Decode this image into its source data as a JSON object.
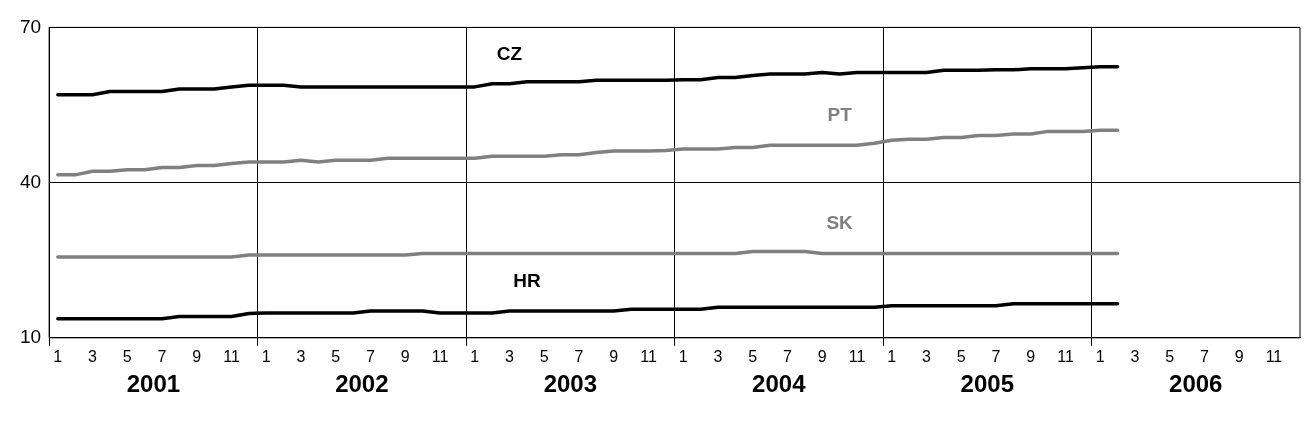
{
  "chart_data": {
    "type": "line",
    "categories": [
      "1",
      null,
      "3",
      null,
      "5",
      null,
      "7",
      null,
      "9",
      null,
      "11",
      null,
      "1",
      null,
      "3",
      null,
      "5",
      null,
      "7",
      null,
      "9",
      null,
      "11",
      null,
      "1",
      null,
      "3",
      null,
      "5",
      null,
      "7",
      null,
      "9",
      null,
      "11",
      null,
      "1",
      null,
      "3",
      null,
      "5",
      null,
      "7",
      null,
      "9",
      null,
      "11",
      null,
      "1",
      null,
      "3",
      null,
      "5",
      null,
      "7",
      null,
      "9",
      null,
      "11",
      null,
      "1",
      null,
      "3",
      null,
      "5",
      null,
      "7",
      null,
      "9",
      null,
      "11",
      null
    ],
    "series": [
      {
        "name": "CZ",
        "color": "#000000",
        "values": [
          57.0,
          57.0,
          57.0,
          57.6,
          57.6,
          57.6,
          57.6,
          58.1,
          58.1,
          58.1,
          58.5,
          58.8,
          58.8,
          58.8,
          58.5,
          58.5,
          58.5,
          58.5,
          58.5,
          58.5,
          58.5,
          58.5,
          58.5,
          58.5,
          58.5,
          59.1,
          59.1,
          59.5,
          59.5,
          59.5,
          59.5,
          59.8,
          59.8,
          59.8,
          59.8,
          59.8,
          59.9,
          59.9,
          60.3,
          60.3,
          60.7,
          61.0,
          61.0,
          61.0,
          61.3,
          61.0,
          61.3,
          61.3,
          61.3,
          61.3,
          61.3,
          61.7,
          61.7,
          61.7,
          61.8,
          61.8,
          62.0,
          62.0,
          62.0,
          62.2,
          62.4,
          62.4,
          null,
          null,
          null,
          null,
          null,
          null,
          null,
          null,
          null,
          null
        ]
      },
      {
        "name": "PT",
        "color": "#808080",
        "values": [
          41.5,
          41.5,
          42.2,
          42.2,
          42.5,
          42.5,
          42.9,
          42.9,
          43.3,
          43.3,
          43.7,
          44.0,
          44.0,
          44.0,
          44.3,
          44.0,
          44.3,
          44.3,
          44.3,
          44.7,
          44.7,
          44.7,
          44.7,
          44.7,
          44.7,
          45.1,
          45.1,
          45.1,
          45.1,
          45.4,
          45.4,
          45.8,
          46.1,
          46.1,
          46.1,
          46.2,
          46.5,
          46.5,
          46.5,
          46.8,
          46.8,
          47.2,
          47.2,
          47.2,
          47.2,
          47.2,
          47.2,
          47.6,
          48.2,
          48.4,
          48.4,
          48.7,
          48.7,
          49.1,
          49.1,
          49.4,
          49.4,
          49.9,
          49.9,
          49.9,
          50.1,
          50.1,
          null,
          null,
          null,
          null,
          null,
          null,
          null,
          null,
          null,
          null
        ]
      },
      {
        "name": "SK",
        "color": "#808080",
        "values": [
          25.6,
          25.6,
          25.6,
          25.6,
          25.6,
          25.6,
          25.6,
          25.6,
          25.6,
          25.6,
          25.6,
          26.0,
          26.0,
          26.0,
          26.0,
          26.0,
          26.0,
          26.0,
          26.0,
          26.0,
          26.0,
          26.3,
          26.3,
          26.3,
          26.3,
          26.3,
          26.3,
          26.3,
          26.3,
          26.3,
          26.3,
          26.3,
          26.3,
          26.3,
          26.3,
          26.3,
          26.3,
          26.3,
          26.3,
          26.3,
          26.7,
          26.7,
          26.7,
          26.7,
          26.3,
          26.3,
          26.3,
          26.3,
          26.3,
          26.3,
          26.3,
          26.3,
          26.3,
          26.3,
          26.3,
          26.3,
          26.3,
          26.3,
          26.3,
          26.3,
          26.3,
          26.3,
          null,
          null,
          null,
          null,
          null,
          null,
          null,
          null,
          null,
          null
        ]
      },
      {
        "name": "HR",
        "color": "#000000",
        "values": [
          13.7,
          13.7,
          13.7,
          13.7,
          13.7,
          13.7,
          13.7,
          14.1,
          14.1,
          14.1,
          14.1,
          14.7,
          14.8,
          14.8,
          14.8,
          14.8,
          14.8,
          14.8,
          15.2,
          15.2,
          15.2,
          15.2,
          14.8,
          14.8,
          14.8,
          14.8,
          15.2,
          15.2,
          15.2,
          15.2,
          15.2,
          15.2,
          15.2,
          15.5,
          15.5,
          15.5,
          15.5,
          15.5,
          15.9,
          15.9,
          15.9,
          15.9,
          15.9,
          15.9,
          15.9,
          15.9,
          15.9,
          15.9,
          16.2,
          16.2,
          16.2,
          16.2,
          16.2,
          16.2,
          16.2,
          16.6,
          16.6,
          16.6,
          16.6,
          16.6,
          16.6,
          16.6,
          null,
          null,
          null,
          null,
          null,
          null,
          null,
          null,
          null,
          null
        ]
      }
    ],
    "ylim": [
      10,
      70
    ],
    "yticks": [
      10,
      40,
      70
    ],
    "grid": true,
    "legend": false,
    "marker": "none",
    "line_style": "solid",
    "annotations": [
      "2001",
      "2002",
      "2003",
      "2004",
      "2005",
      "2006"
    ]
  }
}
